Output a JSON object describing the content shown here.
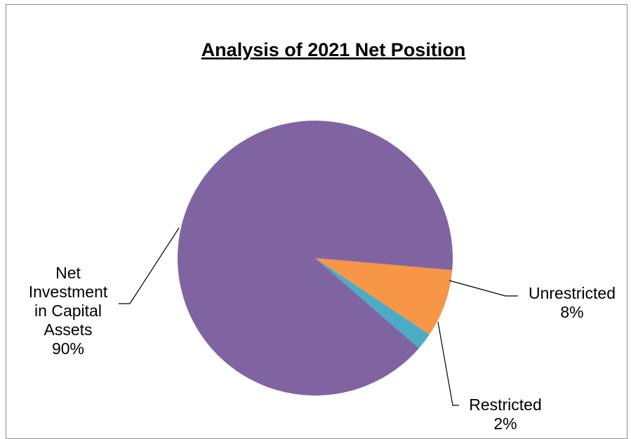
{
  "chart_data": {
    "type": "pie",
    "title": "Analysis of 2021 Net Position",
    "slices": [
      {
        "name": "Unrestricted",
        "value": 8,
        "label_lines": [
          "Unrestricted",
          "8%"
        ],
        "color": "#F79646"
      },
      {
        "name": "Restricted",
        "value": 2,
        "label_lines": [
          "Restricted",
          "2%"
        ],
        "color": "#4BACC6"
      },
      {
        "name": "Net Investment in Capital Assets",
        "value": 90,
        "label_lines": [
          "Net",
          "Investment",
          "in Capital",
          "Assets",
          "90%"
        ],
        "color": "#8064A2"
      }
    ],
    "legend": "none"
  }
}
